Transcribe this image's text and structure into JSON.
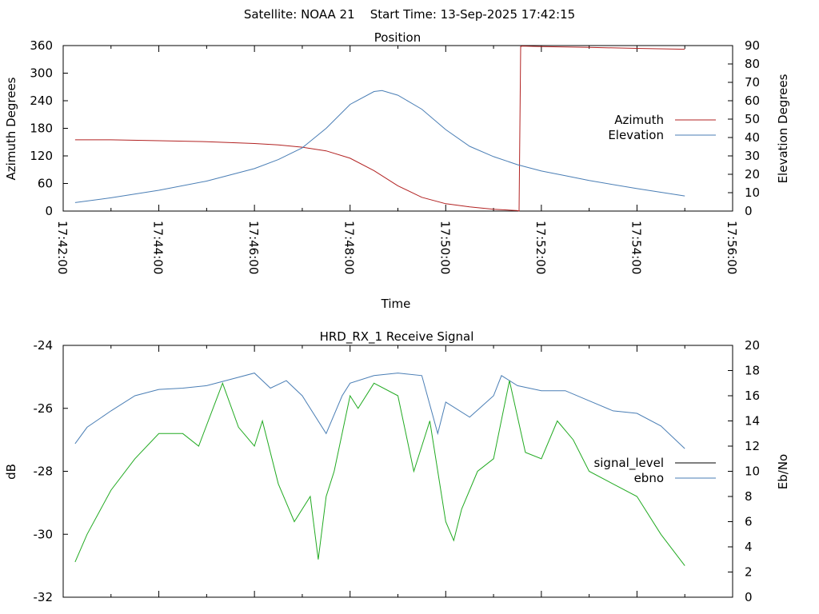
{
  "page_title": "Satellite: NOAA 21    Start Time: 13-Sep-2025 17:42:15",
  "chart_data": [
    {
      "type": "line",
      "title": "Position",
      "xlabel": "Time",
      "ylabel": "Azimuth Degrees",
      "y2label": "Elevation Degrees",
      "x_tick_labels": [
        "17:42:00",
        "17:44:00",
        "17:46:00",
        "17:48:00",
        "17:50:00",
        "17:52:00",
        "17:54:00",
        "17:56:00"
      ],
      "x_range": [
        "17:42:00",
        "17:56:00"
      ],
      "ylim": [
        0,
        360
      ],
      "y_ticks": [
        0,
        60,
        120,
        180,
        240,
        300,
        360
      ],
      "y2lim": [
        0,
        90
      ],
      "y2_ticks": [
        0,
        10,
        20,
        30,
        40,
        50,
        60,
        70,
        80,
        90
      ],
      "legend_position": "right",
      "grid": false,
      "series": [
        {
          "name": "Azimuth",
          "axis": "left",
          "color": "#b22222",
          "x": [
            "17:42:15",
            "17:43:00",
            "17:44:00",
            "17:45:00",
            "17:46:00",
            "17:46:30",
            "17:47:00",
            "17:47:30",
            "17:48:00",
            "17:48:30",
            "17:49:00",
            "17:49:30",
            "17:50:00",
            "17:50:30",
            "17:51:00",
            "17:51:30",
            "17:51:32",
            "17:51:34",
            "17:51:36",
            "17:52:00",
            "17:53:00",
            "17:54:00",
            "17:55:00"
          ],
          "values": [
            155,
            155,
            153,
            151,
            147,
            144,
            139,
            131,
            115,
            88,
            55,
            30,
            16,
            9,
            4,
            1,
            0,
            358,
            359,
            358,
            356,
            354,
            352
          ]
        },
        {
          "name": "Elevation",
          "axis": "right",
          "color": "#4a7eb5",
          "x": [
            "17:42:15",
            "17:43:00",
            "17:44:00",
            "17:45:00",
            "17:46:00",
            "17:46:30",
            "17:47:00",
            "17:47:30",
            "17:48:00",
            "17:48:30",
            "17:48:40",
            "17:49:00",
            "17:49:30",
            "17:50:00",
            "17:50:30",
            "17:51:00",
            "17:51:30",
            "17:52:00",
            "17:52:30",
            "17:53:00",
            "17:54:00",
            "17:55:00"
          ],
          "values": [
            4.6,
            7.2,
            11.3,
            16.3,
            23.1,
            28,
            34.4,
            45,
            58,
            65,
            65.5,
            63,
            55.4,
            44.3,
            35.2,
            29.6,
            25.2,
            21.8,
            19.2,
            16.6,
            12.2,
            8.2
          ]
        }
      ]
    },
    {
      "type": "line",
      "title": "HRD_RX_1 Receive Signal",
      "xlabel": "",
      "ylabel": "dB",
      "y2label": "Eb/No",
      "x_range": [
        "17:42:00",
        "17:56:00"
      ],
      "ylim": [
        -32,
        -24
      ],
      "y_ticks": [
        -32,
        -30,
        -28,
        -26,
        -24
      ],
      "y2lim": [
        0,
        20
      ],
      "y2_ticks": [
        0,
        2,
        4,
        6,
        8,
        10,
        12,
        14,
        16,
        18,
        20
      ],
      "legend_position": "right",
      "grid": false,
      "series": [
        {
          "name": "signal_level",
          "axis": "left",
          "color": "#000000",
          "values": []
        },
        {
          "name": "ebno",
          "axis": "right",
          "color": "#4a7eb5",
          "x": [
            "17:42:15",
            "17:42:30",
            "17:43:00",
            "17:43:30",
            "17:44:00",
            "17:44:30",
            "17:45:00",
            "17:45:30",
            "17:46:00",
            "17:46:20",
            "17:46:40",
            "17:47:00",
            "17:47:30",
            "17:47:50",
            "17:48:00",
            "17:48:30",
            "17:49:00",
            "17:49:30",
            "17:49:50",
            "17:50:00",
            "17:50:30",
            "17:51:00",
            "17:51:10",
            "17:51:30",
            "17:52:00",
            "17:52:30",
            "17:53:00",
            "17:53:30",
            "17:54:00",
            "17:54:30",
            "17:55:00"
          ],
          "values": [
            12.2,
            13.5,
            14.8,
            16.0,
            16.5,
            16.6,
            16.8,
            17.3,
            17.8,
            16.6,
            17.2,
            16.0,
            13.0,
            16.0,
            17.0,
            17.6,
            17.8,
            17.6,
            13.0,
            15.5,
            14.3,
            16.0,
            17.6,
            16.8,
            16.4,
            16.4,
            15.6,
            14.8,
            14.6,
            13.6,
            11.8
          ]
        },
        {
          "name": "",
          "axis": "right",
          "color": "#22aa22",
          "x": [
            "17:42:15",
            "17:42:30",
            "17:43:00",
            "17:43:30",
            "17:44:00",
            "17:44:30",
            "17:44:50",
            "17:45:20",
            "17:45:40",
            "17:46:00",
            "17:46:10",
            "17:46:30",
            "17:46:50",
            "17:47:10",
            "17:47:20",
            "17:47:30",
            "17:47:40",
            "17:48:00",
            "17:48:10",
            "17:48:30",
            "17:49:00",
            "17:49:20",
            "17:49:40",
            "17:50:00",
            "17:50:10",
            "17:50:20",
            "17:50:40",
            "17:51:00",
            "17:51:20",
            "17:51:40",
            "17:52:00",
            "17:52:20",
            "17:52:40",
            "17:53:00",
            "17:53:30",
            "17:54:00",
            "17:54:30",
            "17:55:00"
          ],
          "values": [
            2.8,
            5.0,
            8.5,
            11.0,
            13.0,
            13.0,
            12.0,
            17.0,
            13.5,
            12.0,
            14.0,
            9.0,
            6.0,
            8.0,
            3.0,
            8.0,
            10.0,
            16.0,
            15.0,
            17.0,
            16.0,
            10.0,
            14.0,
            6.0,
            4.5,
            7.0,
            10.0,
            11.0,
            17.2,
            11.5,
            11.0,
            14.0,
            12.5,
            10.0,
            9.0,
            8.0,
            5.0,
            2.5
          ]
        }
      ]
    }
  ]
}
